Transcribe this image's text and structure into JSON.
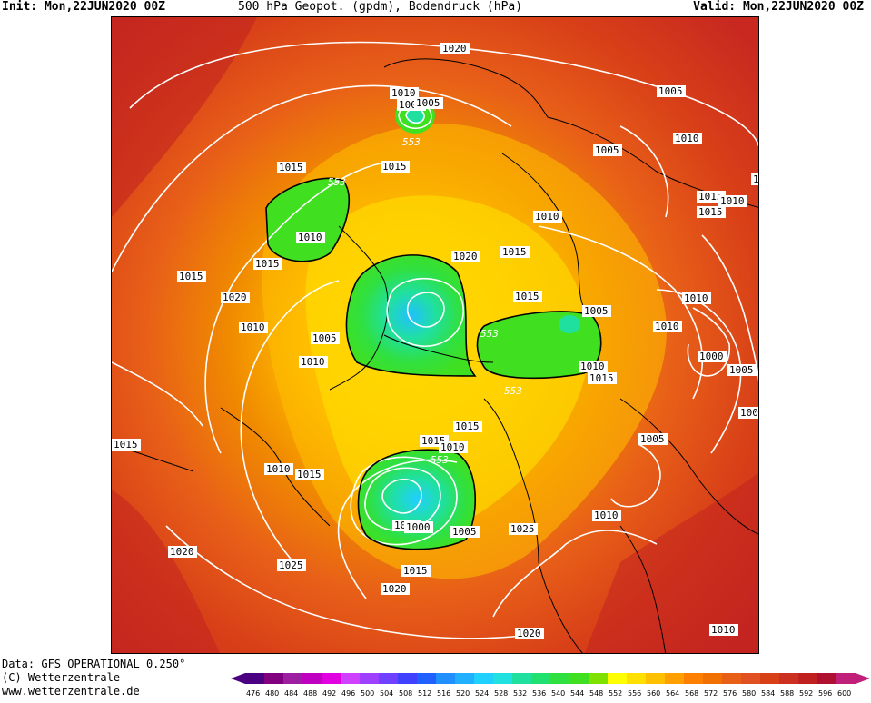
{
  "header": {
    "init": "Init: Mon,22JUN2020 00Z",
    "title": "500 hPa Geopot. (gpdm), Bodendruck (hPa)",
    "valid": "Valid: Mon,22JUN2020 00Z"
  },
  "footer": {
    "data_source": "Data: GFS OPERATIONAL 0.250°",
    "copyright": "(C) Wetterzentrale",
    "url": "www.wetterzentrale.de"
  },
  "legend": {
    "values": [
      "476",
      "480",
      "484",
      "488",
      "492",
      "496",
      "500",
      "504",
      "508",
      "512",
      "516",
      "520",
      "524",
      "528",
      "532",
      "536",
      "540",
      "544",
      "548",
      "552",
      "556",
      "560",
      "564",
      "568",
      "572",
      "576",
      "580",
      "584",
      "588",
      "592",
      "596",
      "600"
    ],
    "colors": [
      "#4b0082",
      "#800080",
      "#9b1fa0",
      "#c000c0",
      "#e000e0",
      "#d040ff",
      "#a040ff",
      "#7040ff",
      "#4040ff",
      "#2060ff",
      "#2090ff",
      "#20b0ff",
      "#20d0ff",
      "#20e0e0",
      "#20e0a0",
      "#20e070",
      "#30e040",
      "#40e020",
      "#80e000",
      "#ffff00",
      "#ffe000",
      "#ffc000",
      "#ffa000",
      "#ff8000",
      "#f07000",
      "#e86018",
      "#e05020",
      "#d84018",
      "#cc3020",
      "#c02020",
      "#b01030",
      "#c0207a"
    ]
  },
  "map": {
    "isobar_labels": [
      {
        "text": "1020"
      },
      {
        "text": "1015"
      },
      {
        "text": "1010"
      },
      {
        "text": "1005"
      },
      {
        "text": "553"
      },
      {
        "text": "1005"
      },
      {
        "text": "1005"
      },
      {
        "text": "1005"
      },
      {
        "text": "1010"
      },
      {
        "text": "1015"
      },
      {
        "text": "1015"
      },
      {
        "text": "553"
      },
      {
        "text": "1010"
      },
      {
        "text": "1015"
      },
      {
        "text": "1010"
      },
      {
        "text": "1020"
      },
      {
        "text": "1015"
      },
      {
        "text": "1015"
      },
      {
        "text": "1015"
      },
      {
        "text": "1020"
      },
      {
        "text": "1010"
      },
      {
        "text": "1005"
      },
      {
        "text": "1010"
      },
      {
        "text": "553"
      },
      {
        "text": "1015"
      },
      {
        "text": "1005"
      },
      {
        "text": "1010"
      },
      {
        "text": "1010"
      },
      {
        "text": "1015"
      },
      {
        "text": "553"
      },
      {
        "text": "1010"
      },
      {
        "text": "1010"
      },
      {
        "text": "1000"
      },
      {
        "text": "1005"
      },
      {
        "text": "1015"
      },
      {
        "text": "1015"
      },
      {
        "text": "1010"
      },
      {
        "text": "553"
      },
      {
        "text": "1005"
      },
      {
        "text": "1015"
      },
      {
        "text": "1010"
      },
      {
        "text": "1015"
      },
      {
        "text": "1005"
      },
      {
        "text": "1000"
      },
      {
        "text": "1005"
      },
      {
        "text": "1025"
      },
      {
        "text": "1010"
      },
      {
        "text": "1020"
      },
      {
        "text": "1025"
      },
      {
        "text": "1015"
      },
      {
        "text": "1020"
      },
      {
        "text": "1020"
      },
      {
        "text": "1010"
      },
      {
        "text": "100"
      },
      {
        "text": "10"
      }
    ]
  }
}
